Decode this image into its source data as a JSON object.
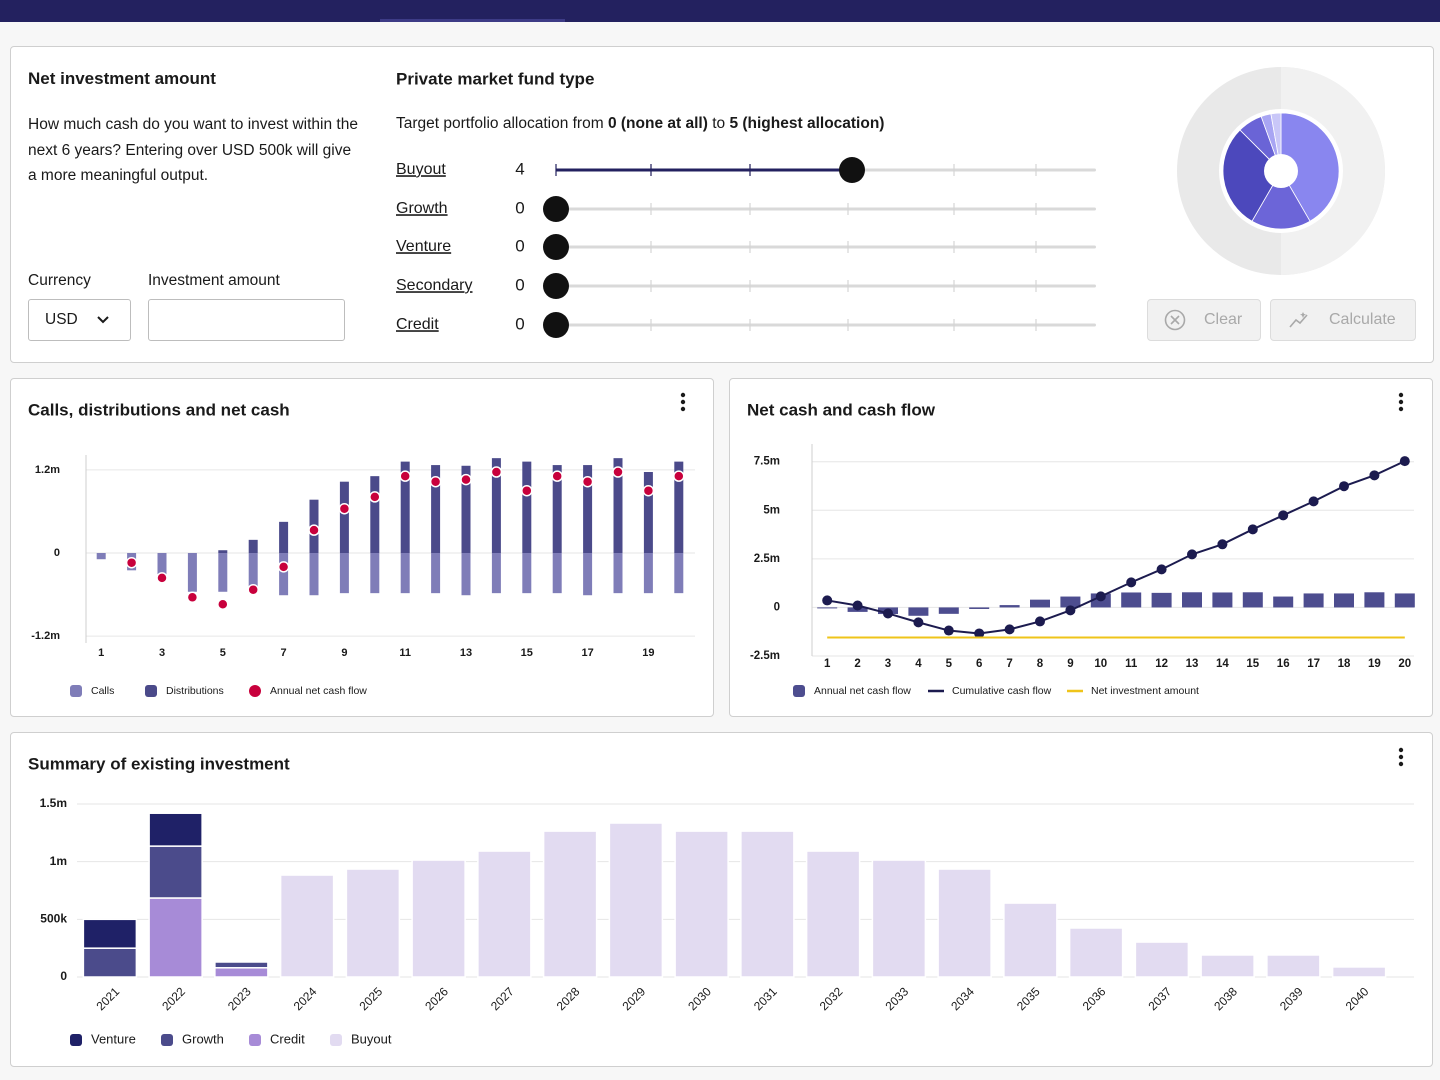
{
  "form": {
    "title": "Net investment amount",
    "description": "How much cash do you want to invest within the next 6 years? Entering over USD 500k will give a more meaningful output.",
    "currency_label": "Currency",
    "currency": "USD",
    "amount_label": "Investment amount"
  },
  "fund_type": {
    "title": "Private market fund type",
    "allocation": {
      "text": "Target portfolio allocation from",
      "min": 0,
      "min_note": "(none at all)",
      "to": "to",
      "max": 5,
      "max_note": "(highest allocation)"
    },
    "sliders": [
      {
        "name": "Buyout",
        "value": 4
      },
      {
        "name": "Growth",
        "value": 0
      },
      {
        "name": "Venture",
        "value": 0
      },
      {
        "name": "Secondary",
        "value": 0
      },
      {
        "name": "Credit",
        "value": 0
      }
    ]
  },
  "buttons": {
    "clear": "Clear",
    "calculate": "Calculate"
  },
  "chart_data": [
    {
      "type": "bar",
      "title": "Calls, distributions and net cash",
      "categories": [
        1,
        null,
        3,
        null,
        5,
        null,
        7,
        null,
        9,
        null,
        11,
        null,
        13,
        null,
        15,
        null,
        17,
        null,
        19,
        null
      ],
      "ylim": [
        -1300000,
        1300000
      ],
      "yticks": [
        {
          "value": -1200000,
          "label": "-1.2m"
        },
        0,
        {
          "value": 1200000,
          "label": "1.2m"
        }
      ],
      "grid": true,
      "series": [
        {
          "name": "Calls",
          "type": "bar",
          "color": "#7f7db8",
          "values": [
            -90000,
            -250000,
            -320000,
            -560000,
            -560000,
            -530000,
            -610000,
            -610000,
            -580000,
            -580000,
            -580000,
            -580000,
            -610000,
            -580000,
            -580000,
            -580000,
            -610000,
            -580000,
            -580000,
            -580000
          ]
        },
        {
          "name": "Distributions",
          "type": "bar",
          "color": "#4b4a8a",
          "values": [
            null,
            null,
            null,
            null,
            40000,
            190000,
            450000,
            770000,
            1030000,
            1110000,
            1320000,
            1270000,
            1260000,
            1370000,
            1320000,
            1270000,
            1270000,
            1370000,
            1170000,
            1320000
          ]
        },
        {
          "name": "Annual net cash flow",
          "type": "scatter",
          "color": "#c8003c",
          "values": [
            null,
            -140000,
            -360000,
            -640000,
            -740000,
            -530000,
            -200000,
            330000,
            640000,
            810000,
            1110000,
            1030000,
            1060000,
            1170000,
            900000,
            1110000,
            1030000,
            1170000,
            900000,
            1110000
          ]
        }
      ]
    },
    {
      "type": "bar",
      "title": "Net cash and cash flow",
      "categories": [
        1,
        2,
        3,
        4,
        5,
        6,
        7,
        8,
        9,
        10,
        11,
        12,
        13,
        14,
        15,
        16,
        17,
        18,
        19,
        20
      ],
      "ylim": [
        -2500000,
        8000000
      ],
      "yticks": [
        {
          "value": -2500000,
          "label": "-2.5m"
        },
        0,
        {
          "value": 2500000,
          "label": "2.5m"
        },
        {
          "value": 5000000,
          "label": "5m"
        },
        {
          "value": 7500000,
          "label": "7.5m"
        }
      ],
      "grid": true,
      "series": [
        {
          "name": "Annual net cash flow",
          "type": "bar",
          "color": "#4d4d8f",
          "values": [
            -50000,
            -230000,
            -340000,
            -430000,
            -330000,
            -80000,
            120000,
            400000,
            560000,
            720000,
            770000,
            750000,
            780000,
            770000,
            780000,
            560000,
            720000,
            720000,
            780000,
            720000
          ]
        },
        {
          "name": "Cumulative cash flow",
          "type": "line",
          "markers": true,
          "color": "#1c1b4f",
          "values": [
            360000,
            100000,
            -310000,
            -770000,
            -1190000,
            -1340000,
            -1130000,
            -720000,
            -150000,
            570000,
            1290000,
            1960000,
            2730000,
            3250000,
            4020000,
            4740000,
            5460000,
            6240000,
            6800000,
            7530000
          ]
        },
        {
          "name": "Net investment amount",
          "type": "line",
          "markers": false,
          "color": "#efc41a",
          "values": [
            -1550000,
            -1550000,
            -1550000,
            -1550000,
            -1550000,
            -1550000,
            -1550000,
            -1550000,
            -1550000,
            -1550000,
            -1550000,
            -1550000,
            -1550000,
            -1550000,
            -1550000,
            -1550000,
            -1550000,
            -1550000,
            -1550000,
            -1550000
          ]
        }
      ]
    },
    {
      "type": "stacked_bar",
      "title": "Summary of existing investment",
      "categories": [
        "2021",
        "2022",
        "2023",
        "2024",
        "2025",
        "2026",
        "2027",
        "2028",
        "2029",
        "2030",
        "2031",
        "2032",
        "2033",
        "2034",
        "2035",
        "2036",
        "2037",
        "2038",
        "2039",
        "2040"
      ],
      "ylim": [
        0,
        1500000
      ],
      "yticks": [
        0,
        {
          "value": 500000,
          "label": "500k"
        },
        {
          "value": 1000000,
          "label": "1m"
        },
        {
          "value": 1500000,
          "label": "1.5m"
        }
      ],
      "grid": true,
      "series": [
        {
          "name": "Venture",
          "color": "#1f2167",
          "values": [
            250000,
            285000,
            null,
            null,
            null,
            null,
            null,
            null,
            null,
            null,
            null,
            null,
            null,
            null,
            null,
            null,
            null,
            null,
            null,
            null
          ]
        },
        {
          "name": "Growth",
          "color": "#4b4b8b",
          "values": [
            250000,
            450000,
            50000,
            null,
            null,
            null,
            null,
            null,
            null,
            null,
            null,
            null,
            null,
            null,
            null,
            null,
            null,
            null,
            null,
            null
          ]
        },
        {
          "name": "Credit",
          "color": "#a78bd7",
          "values": [
            null,
            685000,
            80000,
            null,
            null,
            null,
            null,
            null,
            null,
            null,
            null,
            null,
            null,
            null,
            null,
            null,
            null,
            null,
            null,
            null
          ]
        },
        {
          "name": "Buyout",
          "color": "#e2dbf1",
          "values": [
            null,
            null,
            null,
            884000,
            936000,
            1014000,
            1092000,
            1265000,
            1335000,
            1265000,
            1265000,
            1092000,
            1014000,
            936000,
            641000,
            425000,
            303000,
            191000,
            191000,
            87000
          ]
        }
      ]
    }
  ]
}
